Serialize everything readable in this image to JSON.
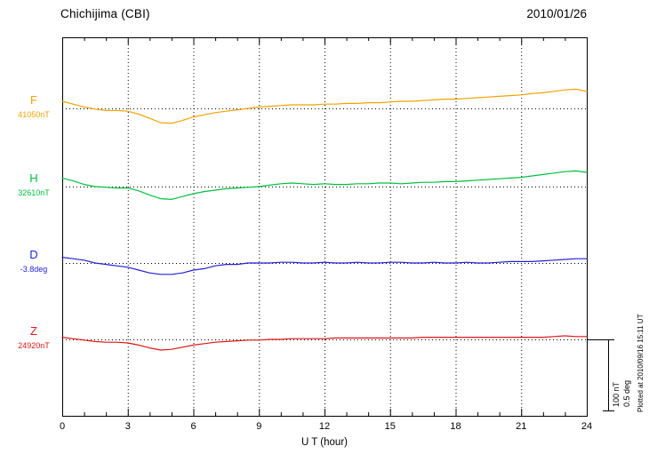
{
  "chart_data": {
    "type": "line",
    "title": "Chichijima (CBI)",
    "date": "2010/01/26",
    "xlabel": "U T (hour)",
    "x_range": [
      0,
      24
    ],
    "x_ticks": [
      0,
      3,
      6,
      9,
      12,
      15,
      18,
      21,
      24
    ],
    "sample_interval_hours": 0.5,
    "grid": "dotted vertical gridlines every 3 hours; dotted horizontal baseline per trace",
    "legend_position": "left of plot",
    "scale_bar": {
      "nt_label": "100 nT",
      "deg_label": "0.5 deg",
      "nT_per_division": 100,
      "deg_per_division": 0.5
    },
    "plotted_at": "Plotted at 2010/09/16 15:11 UT",
    "series": [
      {
        "name": "F",
        "unit": "nT",
        "baseline_label": "41050nT",
        "baseline_value": 41050,
        "color": "#f2a200",
        "offsets": [
          10,
          6,
          2,
          -1,
          -3,
          -3,
          -4,
          -8,
          -14,
          -20,
          -21,
          -17,
          -12,
          -9,
          -6,
          -4,
          -2,
          0,
          2,
          3,
          4,
          5,
          5,
          5,
          6,
          6,
          7,
          7,
          8,
          8,
          9,
          10,
          10,
          11,
          12,
          13,
          13,
          14,
          15,
          16,
          17,
          18,
          19,
          21,
          22,
          24,
          26,
          27,
          24
        ]
      },
      {
        "name": "H",
        "unit": "nT",
        "baseline_label": "32610nT",
        "baseline_value": 32610,
        "color": "#00c040",
        "offsets": [
          12,
          8,
          3,
          0,
          -1,
          -2,
          -2,
          -6,
          -12,
          -17,
          -18,
          -14,
          -10,
          -7,
          -5,
          -3,
          -2,
          -1,
          0,
          2,
          4,
          5,
          4,
          3,
          4,
          3,
          3,
          4,
          4,
          5,
          5,
          4,
          5,
          6,
          6,
          7,
          7,
          8,
          9,
          10,
          11,
          12,
          13,
          15,
          17,
          19,
          21,
          22,
          20
        ]
      },
      {
        "name": "D",
        "unit": "deg",
        "baseline_label": "-3.8deg",
        "baseline_value": -3.8,
        "color": "#2222d6",
        "offsets": [
          0.04,
          0.03,
          0.02,
          0,
          -0.01,
          -0.02,
          -0.03,
          -0.05,
          -0.07,
          -0.08,
          -0.08,
          -0.07,
          -0.05,
          -0.04,
          -0.02,
          -0.01,
          -0.01,
          0,
          0,
          0,
          0.005,
          0.005,
          0,
          0,
          0.005,
          0,
          0,
          0.005,
          0,
          0,
          0.005,
          0.005,
          0,
          0,
          0.005,
          0,
          0,
          0.005,
          0,
          0,
          0.005,
          0.01,
          0.01,
          0.01,
          0.015,
          0.02,
          0.025,
          0.03,
          0.03
        ]
      },
      {
        "name": "Z",
        "unit": "nT",
        "baseline_label": "24920nT",
        "baseline_value": 24920,
        "color": "#e01515",
        "offsets": [
          3,
          1,
          -1,
          -3,
          -4,
          -4,
          -5,
          -8,
          -12,
          -15,
          -14,
          -11,
          -8,
          -6,
          -4,
          -3,
          -2,
          -1,
          -1,
          0,
          0,
          1,
          1,
          1,
          1,
          2,
          2,
          2,
          2,
          2,
          2,
          2,
          2,
          3,
          3,
          3,
          3,
          3,
          3,
          3,
          3,
          3,
          3,
          3,
          3,
          4,
          5,
          4,
          4
        ]
      }
    ]
  }
}
